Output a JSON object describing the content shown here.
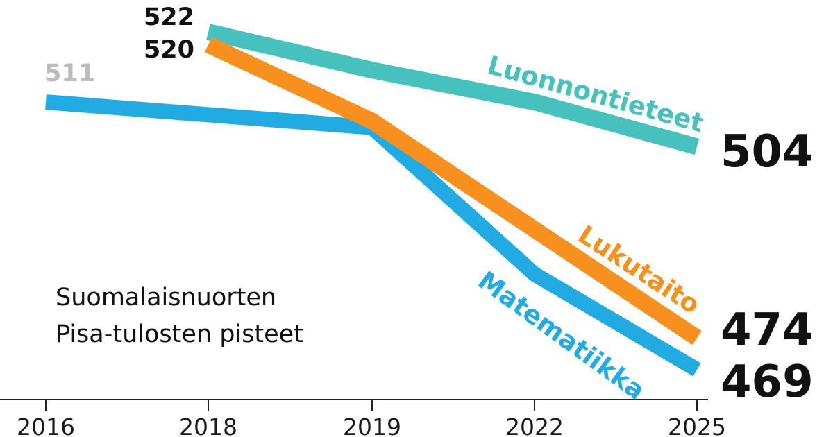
{
  "chart_data": {
    "type": "line",
    "title": [
      "Suomalaisnuorten",
      "Pisa-tulosten pisteet"
    ],
    "categories": [
      "2016",
      "2018",
      "2019",
      "2022",
      "2025"
    ],
    "ylim": [
      460,
      530
    ],
    "grid": false,
    "series": [
      {
        "name": "Luonnontieteet",
        "color": "#47c1bd",
        "values": [
          null,
          522,
          516,
          511,
          504
        ],
        "start_label": "522",
        "end_label": "504"
      },
      {
        "name": "Lukutaito",
        "color": "#f7901e",
        "values": [
          null,
          520,
          508,
          491,
          474
        ],
        "start_label": "520",
        "end_label": "474"
      },
      {
        "name": "Matematiikka",
        "color": "#22aae2",
        "values": [
          511,
          null,
          507,
          484,
          469
        ],
        "start_label": "511",
        "end_label": "469"
      }
    ]
  }
}
